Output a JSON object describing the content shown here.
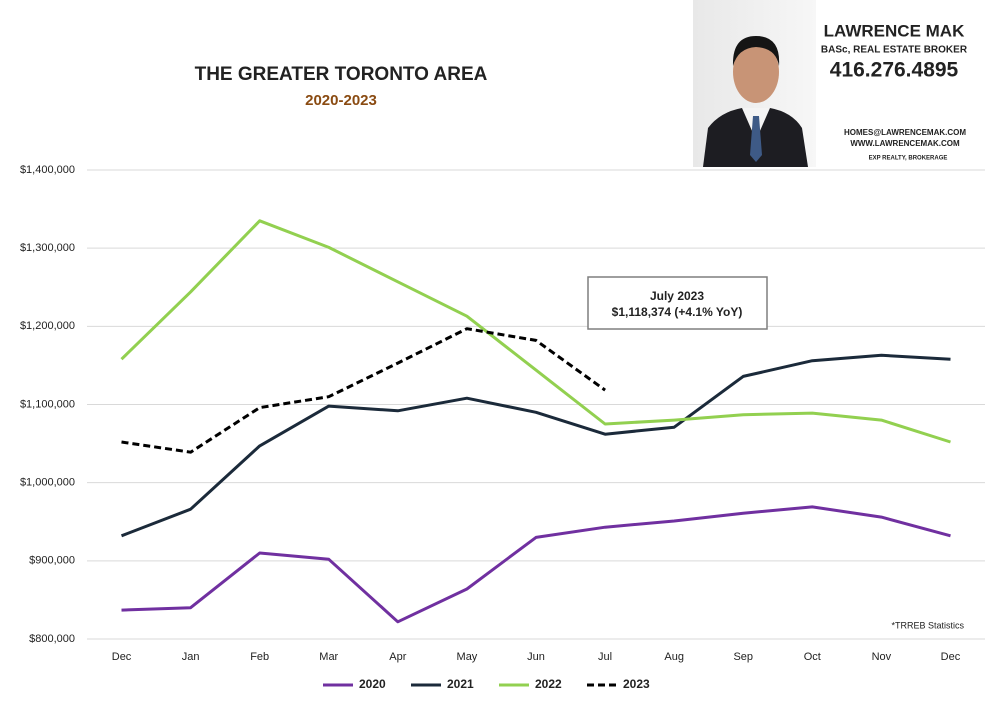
{
  "chart_data": {
    "type": "line",
    "title": "THE GREATER TORONTO AREA",
    "subtitle": "2020-2023",
    "categories": [
      "Dec",
      "Jan",
      "Feb",
      "Mar",
      "Apr",
      "May",
      "Jun",
      "Jul",
      "Aug",
      "Sep",
      "Oct",
      "Nov",
      "Dec"
    ],
    "series": [
      {
        "name": "2020",
        "color": "#7030a0",
        "values": [
          837000,
          840000,
          910000,
          902000,
          822000,
          864000,
          930000,
          943000,
          951000,
          961000,
          969000,
          956000,
          932000
        ]
      },
      {
        "name": "2021",
        "color": "#1b2a3a",
        "values": [
          932000,
          966000,
          1047000,
          1098000,
          1092000,
          1108000,
          1090000,
          1062000,
          1071000,
          1136000,
          1156000,
          1163000,
          1158000
        ]
      },
      {
        "name": "2022",
        "color": "#92d050",
        "values": [
          1158000,
          1244000,
          1335000,
          1301000,
          1257000,
          1213000,
          1144000,
          1075000,
          1080000,
          1087000,
          1089000,
          1080000,
          1052000
        ]
      },
      {
        "name": "2023",
        "color": "#000000",
        "dashed": true,
        "values": [
          1052000,
          1039000,
          1096000,
          1110000,
          1153000,
          1197000,
          1182000,
          1118374,
          null,
          null,
          null,
          null,
          null
        ]
      }
    ],
    "ylim": [
      800000,
      1400000
    ],
    "yticks": [
      {
        "value": 800000,
        "label": "$800,000"
      },
      {
        "value": 900000,
        "label": "$900,000"
      },
      {
        "value": 1000000,
        "label": "$1,000,000"
      },
      {
        "value": 1100000,
        "label": "$1,100,000"
      },
      {
        "value": 1200000,
        "label": "$1,200,000"
      },
      {
        "value": 1300000,
        "label": "$1,300,000"
      },
      {
        "value": 1400000,
        "label": "$1,400,000"
      }
    ],
    "grid": true,
    "legend": "bottom",
    "annotation": [
      "July 2023",
      "$1,118,374  (+4.1%  YoY)"
    ],
    "note": "*TRREB Statistics"
  },
  "agent": {
    "name": "LAWRENCE MAK",
    "credentials": "BASc, REAL ESTATE BROKER",
    "phone": "416.276.4895",
    "email": "HOMES@LAWRENCEMAK.COM",
    "website": "WWW.LAWRENCEMAK.COM",
    "brokerage": "EXP REALTY, BROKERAGE"
  }
}
